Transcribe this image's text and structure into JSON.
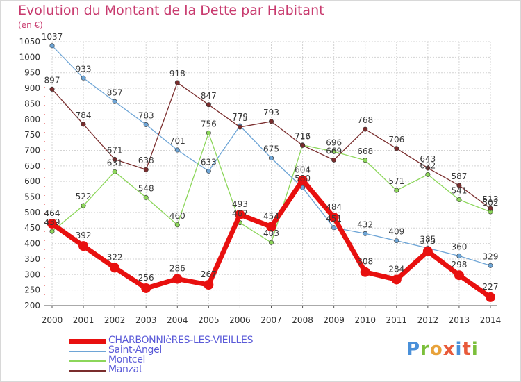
{
  "title": "Evolution du Montant de la Dette par Habitant",
  "unit": "(en €)",
  "logo": {
    "text": "Proxiti",
    "colors": [
      "#4a90d9",
      "#7bbf3a",
      "#e8a23a",
      "#e85a3a",
      "#4a90d9",
      "#e85a3a",
      "#7bbf3a"
    ]
  },
  "colors": {
    "title": "#c83a6e",
    "legend_text": "#5a5ad8",
    "grid": "#d3d3d3",
    "axis": "#555555"
  },
  "chart_data": {
    "type": "line",
    "title": "Evolution du Montant de la Dette par Habitant",
    "ylabel": "(en €)",
    "xlabel": "",
    "x": [
      "2000",
      "2001",
      "2002",
      "2003",
      "2004",
      "2005",
      "2006",
      "2007",
      "2008",
      "2009",
      "2010",
      "2011",
      "2012",
      "2013",
      "2014"
    ],
    "ylim": [
      200,
      1050
    ],
    "yticks": [
      200,
      250,
      300,
      350,
      400,
      450,
      500,
      550,
      600,
      650,
      700,
      750,
      800,
      850,
      900,
      950,
      1000,
      1050
    ],
    "grid": true,
    "legend_position": "bottom-left",
    "series": [
      {
        "name": "CHARBONNIèRES-LES-VIEILLES",
        "color": "#e8100f",
        "thick": true,
        "values": [
          464,
          392,
          322,
          256,
          286,
          267,
          493,
          454,
          604,
          484,
          308,
          284,
          375,
          298,
          227
        ]
      },
      {
        "name": "Saint-Angel",
        "color": "#6ea5d6",
        "thick": false,
        "values": [
          1037,
          933,
          857,
          783,
          701,
          633,
          779,
          675,
          580,
          451,
          432,
          409,
          385,
          360,
          329
        ]
      },
      {
        "name": "Montcel",
        "color": "#8cd65a",
        "thick": false,
        "values": [
          439,
          522,
          631,
          548,
          460,
          756,
          467,
          403,
          717,
          696,
          668,
          571,
          622,
          541,
          502
        ]
      },
      {
        "name": "Manzat",
        "color": "#7a2d2d",
        "thick": false,
        "values": [
          897,
          784,
          671,
          638,
          918,
          847,
          775,
          793,
          716,
          669,
          768,
          706,
          643,
          587,
          513
        ]
      }
    ]
  }
}
